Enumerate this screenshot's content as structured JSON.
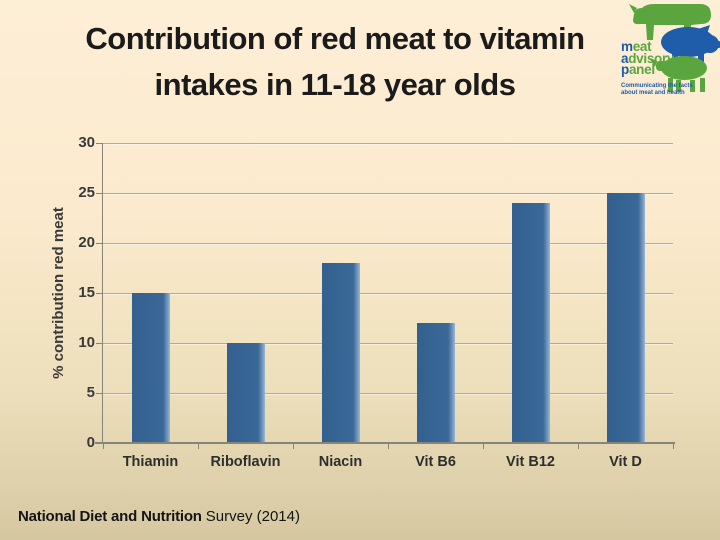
{
  "slide": {
    "title": {
      "line1": "Contribution of red meat to vitamin",
      "line2": "intakes in 11-18 year olds"
    },
    "footer": {
      "bold_part": "National Diet and Nutrition",
      "regular_part": "Survey (2014)"
    }
  },
  "logo": {
    "name_parts": [
      {
        "initial": "m",
        "rest": "eat"
      },
      {
        "initial": "a",
        "rest": "dvisory"
      },
      {
        "initial": "p",
        "rest": "anel"
      }
    ],
    "tagline_line1": "Communicating the facts",
    "tagline_line2": "about meat and health",
    "colors": {
      "green": "#5BA53F",
      "blue": "#1F5CA9"
    }
  },
  "chart_data": {
    "type": "bar",
    "title": "",
    "categories": [
      "Thiamin",
      "Riboflavin",
      "Niacin",
      "Vit B6",
      "Vit B12",
      "Vit D"
    ],
    "values": [
      15,
      10,
      18,
      12,
      24,
      25
    ],
    "xlabel": "",
    "ylabel": "% contribution red meat",
    "ylim": [
      0,
      30
    ],
    "ytick_step": 5,
    "grid": true,
    "legend": false,
    "bar_color": "#35618F",
    "gridline_color": "#AFAC9E",
    "axis_color": "#85857A",
    "label_color": "#3A3A3A"
  }
}
